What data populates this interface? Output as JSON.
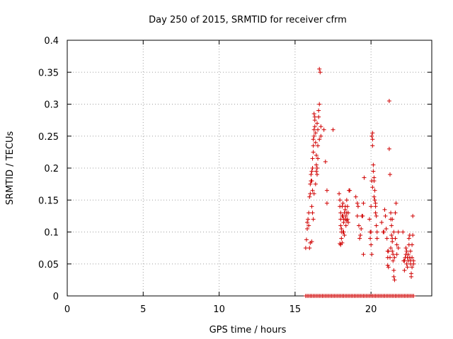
{
  "chart_data": {
    "type": "scatter",
    "title": "Day 250 of 2015, SRMTID for receiver cfrm",
    "xlabel": "GPS time / hours",
    "ylabel": "SRMTID / TECUs",
    "xlim": [
      0,
      24
    ],
    "ylim": [
      0,
      0.4
    ],
    "xticks": [
      0,
      5,
      10,
      15,
      20
    ],
    "xtick_labels": [
      "0",
      "5",
      "10",
      "15",
      "20"
    ],
    "yticks": [
      0,
      0.05,
      0.1,
      0.15,
      0.2,
      0.25,
      0.3,
      0.35,
      0.4
    ],
    "ytick_labels": [
      "0",
      "0.05",
      "0.1",
      "0.15",
      "0.2",
      "0.25",
      "0.3",
      "0.35",
      "0.4"
    ],
    "grid": true,
    "marker": "+",
    "color": "#d00000",
    "series": [
      {
        "name": "SRMTID",
        "points": [
          [
            15.7,
            0.075
          ],
          [
            15.75,
            0.088
          ],
          [
            15.8,
            0.105
          ],
          [
            15.8,
            0.115
          ],
          [
            15.85,
            0.12
          ],
          [
            15.9,
            0.13
          ],
          [
            15.9,
            0.11
          ],
          [
            15.95,
            0.075
          ],
          [
            16.0,
            0.083
          ],
          [
            15.95,
            0.155
          ],
          [
            16.0,
            0.16
          ],
          [
            16.0,
            0.175
          ],
          [
            16.05,
            0.18
          ],
          [
            16.05,
            0.19
          ],
          [
            16.1,
            0.195
          ],
          [
            16.1,
            0.18
          ],
          [
            16.15,
            0.165
          ],
          [
            16.15,
            0.2
          ],
          [
            16.15,
            0.215
          ],
          [
            16.2,
            0.225
          ],
          [
            16.2,
            0.235
          ],
          [
            16.2,
            0.245
          ],
          [
            16.25,
            0.25
          ],
          [
            16.25,
            0.26
          ],
          [
            16.25,
            0.285
          ],
          [
            16.3,
            0.28
          ],
          [
            16.3,
            0.265
          ],
          [
            16.35,
            0.255
          ],
          [
            16.35,
            0.24
          ],
          [
            16.4,
            0.22
          ],
          [
            16.4,
            0.205
          ],
          [
            16.45,
            0.2
          ],
          [
            16.45,
            0.19
          ],
          [
            16.5,
            0.215
          ],
          [
            16.5,
            0.235
          ],
          [
            16.5,
            0.26
          ],
          [
            16.55,
            0.28
          ],
          [
            16.55,
            0.29
          ],
          [
            16.6,
            0.3
          ],
          [
            16.6,
            0.245
          ],
          [
            16.6,
            0.355
          ],
          [
            16.65,
            0.35
          ],
          [
            16.7,
            0.265
          ],
          [
            16.7,
            0.25
          ],
          [
            16.45,
            0.27
          ],
          [
            16.3,
            0.275
          ],
          [
            16.2,
            0.12
          ],
          [
            16.15,
            0.13
          ],
          [
            16.1,
            0.14
          ],
          [
            16.1,
            0.085
          ],
          [
            16.9,
            0.26
          ],
          [
            17.0,
            0.21
          ],
          [
            17.1,
            0.165
          ],
          [
            17.1,
            0.145
          ],
          [
            17.5,
            0.26
          ],
          [
            16.4,
            0.195
          ],
          [
            16.35,
            0.175
          ],
          [
            16.25,
            0.16
          ],
          [
            17.9,
            0.16
          ],
          [
            17.95,
            0.15
          ],
          [
            17.95,
            0.14
          ],
          [
            18.0,
            0.13
          ],
          [
            18.0,
            0.12
          ],
          [
            18.0,
            0.11
          ],
          [
            18.05,
            0.1
          ],
          [
            18.05,
            0.09
          ],
          [
            18.1,
            0.083
          ],
          [
            18.1,
            0.14
          ],
          [
            18.15,
            0.145
          ],
          [
            18.15,
            0.125
          ],
          [
            18.2,
            0.115
          ],
          [
            18.2,
            0.1
          ],
          [
            18.25,
            0.095
          ],
          [
            18.25,
            0.13
          ],
          [
            18.3,
            0.14
          ],
          [
            18.3,
            0.12
          ],
          [
            18.35,
            0.125
          ],
          [
            18.35,
            0.11
          ],
          [
            18.4,
            0.118
          ],
          [
            18.4,
            0.13
          ],
          [
            18.45,
            0.12
          ],
          [
            18.5,
            0.115
          ],
          [
            18.5,
            0.13
          ],
          [
            18.55,
            0.165
          ],
          [
            18.6,
            0.165
          ],
          [
            18.1,
            0.125
          ],
          [
            18.0,
            0.08
          ],
          [
            17.95,
            0.082
          ],
          [
            18.05,
            0.105
          ],
          [
            18.15,
            0.1
          ],
          [
            18.2,
            0.12
          ],
          [
            18.3,
            0.135
          ],
          [
            18.4,
            0.15
          ],
          [
            18.45,
            0.14
          ],
          [
            19.0,
            0.155
          ],
          [
            19.1,
            0.145
          ],
          [
            19.1,
            0.125
          ],
          [
            19.15,
            0.14
          ],
          [
            19.2,
            0.11
          ],
          [
            19.25,
            0.09
          ],
          [
            19.3,
            0.095
          ],
          [
            19.35,
            0.105
          ],
          [
            19.4,
            0.125
          ],
          [
            19.45,
            0.125
          ],
          [
            19.5,
            0.145
          ],
          [
            19.5,
            0.065
          ],
          [
            19.55,
            0.185
          ],
          [
            19.9,
            0.12
          ],
          [
            19.95,
            0.1
          ],
          [
            19.95,
            0.09
          ],
          [
            20.0,
            0.14
          ],
          [
            20.0,
            0.1
          ],
          [
            20.0,
            0.08
          ],
          [
            20.05,
            0.065
          ],
          [
            20.05,
            0.25
          ],
          [
            20.1,
            0.255
          ],
          [
            20.1,
            0.245
          ],
          [
            20.1,
            0.235
          ],
          [
            20.15,
            0.205
          ],
          [
            20.15,
            0.195
          ],
          [
            20.2,
            0.185
          ],
          [
            20.2,
            0.18
          ],
          [
            20.25,
            0.165
          ],
          [
            20.25,
            0.15
          ],
          [
            20.3,
            0.14
          ],
          [
            20.3,
            0.13
          ],
          [
            20.35,
            0.125
          ],
          [
            20.35,
            0.11
          ],
          [
            20.4,
            0.1
          ],
          [
            20.4,
            0.09
          ],
          [
            20.2,
            0.155
          ],
          [
            20.3,
            0.145
          ],
          [
            20.05,
            0.18
          ],
          [
            20.1,
            0.17
          ],
          [
            20.7,
            0.115
          ],
          [
            20.8,
            0.1
          ],
          [
            20.85,
            0.1
          ],
          [
            20.9,
            0.135
          ],
          [
            20.95,
            0.125
          ],
          [
            21.0,
            0.105
          ],
          [
            21.05,
            0.09
          ],
          [
            21.1,
            0.07
          ],
          [
            21.1,
            0.06
          ],
          [
            21.1,
            0.048
          ],
          [
            21.15,
            0.045
          ],
          [
            21.2,
            0.305
          ],
          [
            21.2,
            0.23
          ],
          [
            21.25,
            0.19
          ],
          [
            21.3,
            0.13
          ],
          [
            21.3,
            0.12
          ],
          [
            21.35,
            0.11
          ],
          [
            21.35,
            0.095
          ],
          [
            21.4,
            0.09
          ],
          [
            21.4,
            0.085
          ],
          [
            21.4,
            0.07
          ],
          [
            21.45,
            0.065
          ],
          [
            21.45,
            0.055
          ],
          [
            21.5,
            0.04
          ],
          [
            21.5,
            0.03
          ],
          [
            21.55,
            0.025
          ],
          [
            21.55,
            0.06
          ],
          [
            21.6,
            0.09
          ],
          [
            21.6,
            0.13
          ],
          [
            21.65,
            0.145
          ],
          [
            21.7,
            0.065
          ],
          [
            21.7,
            0.08
          ],
          [
            21.8,
            0.075
          ],
          [
            21.8,
            0.1
          ],
          [
            21.3,
            0.075
          ],
          [
            21.25,
            0.06
          ],
          [
            21.5,
            0.1
          ],
          [
            21.4,
            0.12
          ],
          [
            21.15,
            0.07
          ],
          [
            22.1,
            0.1
          ],
          [
            22.2,
            0.055
          ],
          [
            22.25,
            0.06
          ],
          [
            22.3,
            0.065
          ],
          [
            22.3,
            0.075
          ],
          [
            22.35,
            0.05
          ],
          [
            22.4,
            0.045
          ],
          [
            22.4,
            0.06
          ],
          [
            22.45,
            0.055
          ],
          [
            22.5,
            0.08
          ],
          [
            22.5,
            0.09
          ],
          [
            22.55,
            0.095
          ],
          [
            22.55,
            0.06
          ],
          [
            22.6,
            0.055
          ],
          [
            22.6,
            0.05
          ],
          [
            22.65,
            0.035
          ],
          [
            22.65,
            0.03
          ],
          [
            22.7,
            0.045
          ],
          [
            22.7,
            0.06
          ],
          [
            22.7,
            0.08
          ],
          [
            22.75,
            0.125
          ],
          [
            22.75,
            0.095
          ],
          [
            22.8,
            0.055
          ],
          [
            22.8,
            0.05
          ],
          [
            22.6,
            0.07
          ],
          [
            22.45,
            0.065
          ],
          [
            22.35,
            0.07
          ],
          [
            22.2,
            0.04
          ],
          [
            22.15,
            0.055
          ]
        ],
        "zero_points_x": [
          15.7,
          15.8,
          15.9,
          16.0,
          16.1,
          16.2,
          16.3,
          16.4,
          16.5,
          16.6,
          16.7,
          16.8,
          16.9,
          17.0,
          17.1,
          17.2,
          17.3,
          17.4,
          17.5,
          17.6,
          17.7,
          17.8,
          17.9,
          18.0,
          18.1,
          18.2,
          18.3,
          18.4,
          18.5,
          18.6,
          18.7,
          18.8,
          18.9,
          19.0,
          19.1,
          19.2,
          19.3,
          19.4,
          19.5,
          19.6,
          19.7,
          19.8,
          19.9,
          20.0,
          20.1,
          20.2,
          20.3,
          20.4,
          20.5,
          20.6,
          20.7,
          20.8,
          20.9,
          21.0,
          21.1,
          21.2,
          21.3,
          21.4,
          21.5,
          21.6,
          21.7,
          21.8,
          21.9,
          22.0,
          22.1,
          22.2,
          22.3,
          22.4,
          22.5,
          22.6,
          22.7,
          22.8
        ]
      }
    ]
  }
}
